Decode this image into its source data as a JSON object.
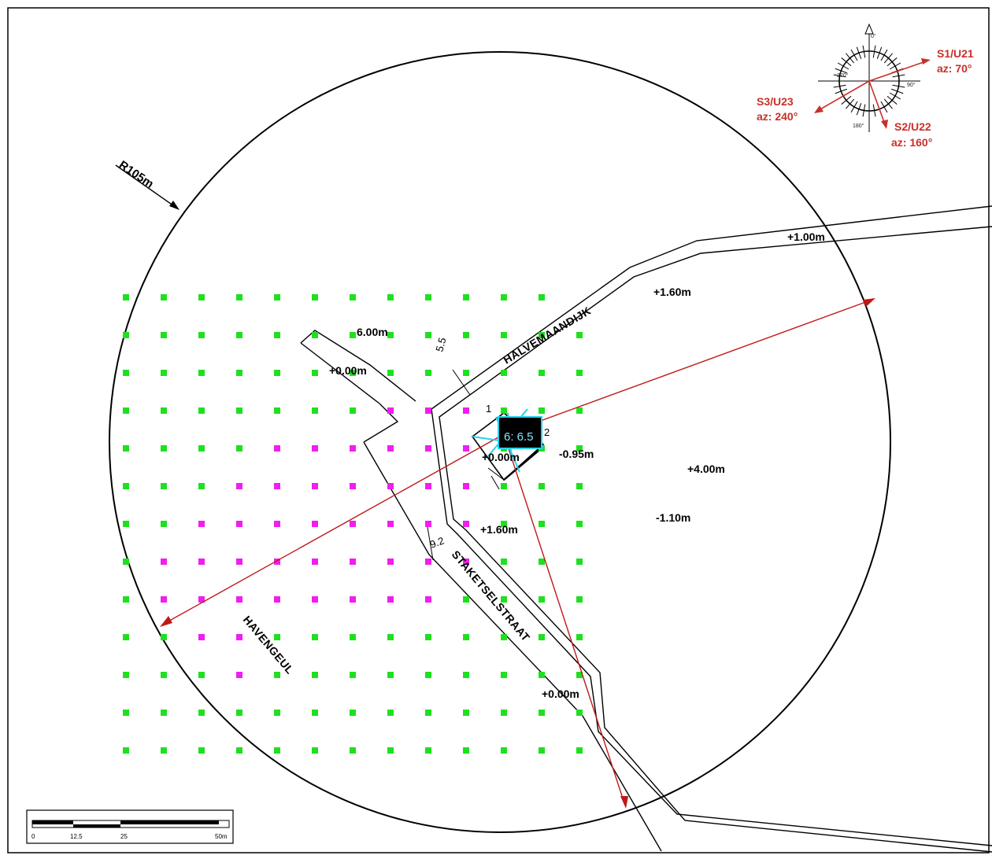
{
  "radius_label": "R105m",
  "streets": {
    "halvemaandijk": "HALVEMAANDIJK",
    "staketselstraat": "STAKETSELSTRAAT",
    "havengeul": "HAVENGEUL"
  },
  "elevations": [
    {
      "text": "+1.00m"
    },
    {
      "text": "+1.60m"
    },
    {
      "text": "6.00m"
    },
    {
      "text": "+0.00m"
    },
    {
      "text": "-0.95m"
    },
    {
      "text": "+4.00m"
    },
    {
      "text": "-1.10m"
    },
    {
      "text": "+1.60m"
    },
    {
      "text": "+0.00m"
    },
    {
      "text": "+0.00m"
    }
  ],
  "dimensions": {
    "d1": "5.5",
    "d2": "9.2"
  },
  "building": {
    "label": "6: 6.5",
    "corner1": "1",
    "corner2": "2"
  },
  "directions": [
    {
      "id": "S1/U21",
      "az": "az: 70°"
    },
    {
      "id": "S2/U22",
      "az": "az: 160°"
    },
    {
      "id": "S3/U23",
      "az": "az: 240°"
    }
  ],
  "compass": {
    "labels": [
      "0°",
      "90°",
      "180°",
      "270°"
    ]
  },
  "scale_bar": {
    "ticks": [
      "0",
      "12.5",
      "25",
      "50m"
    ]
  },
  "grid": {
    "colors": {
      "normal": "#1fe01f",
      "affected": "#f01ef0"
    },
    "magenta_rows": {
      "3": [
        7,
        8,
        9
      ],
      "4": [
        4,
        5,
        6,
        7,
        8,
        9
      ],
      "5": [
        3,
        4,
        5,
        6,
        7,
        8,
        9
      ],
      "6": [
        2,
        3,
        4,
        5,
        6,
        7,
        8,
        9
      ],
      "7": [
        1,
        2,
        3,
        4,
        5,
        6,
        7,
        8,
        9
      ],
      "8": [
        1,
        2,
        3,
        4,
        5,
        6,
        7,
        8
      ],
      "9": [
        2,
        3
      ],
      "10": [
        3
      ]
    },
    "skip": {
      "0": [
        13
      ],
      "1": []
    }
  }
}
